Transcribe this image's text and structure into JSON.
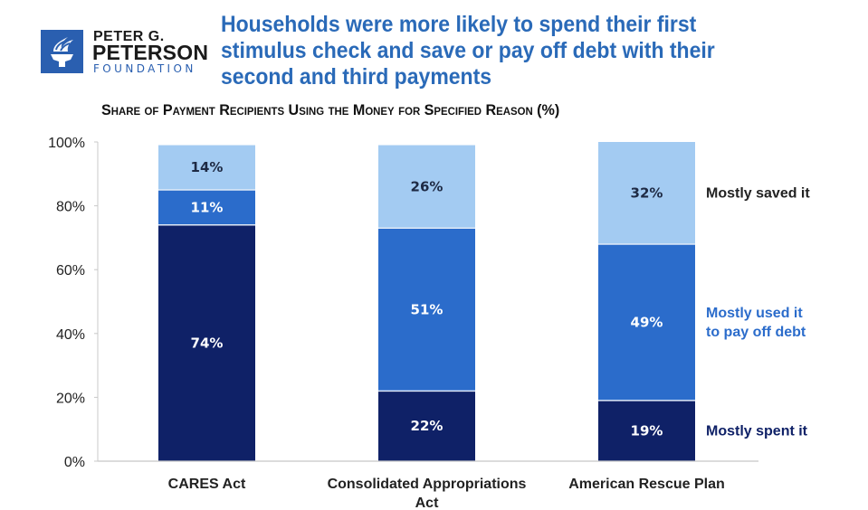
{
  "logo": {
    "line1": "PETER G.",
    "line2": "PETERSON",
    "line3": "FOUNDATION",
    "icon": "torch-icon",
    "brand_color": "#2a5fb0"
  },
  "headline": "Households were more likely to spend their first stimulus check and save or pay off debt with their second and third payments",
  "chart_data": {
    "type": "bar",
    "stacked": true,
    "title": "Share of Payment Recipients Using the Money for Specified Reason (%)",
    "xlabel": "",
    "ylabel": "",
    "ylim": [
      0,
      100
    ],
    "yticks": [
      0,
      20,
      40,
      60,
      80,
      100
    ],
    "ytick_labels": [
      "0%",
      "20%",
      "40%",
      "60%",
      "80%",
      "100%"
    ],
    "grid": false,
    "legend_placement": "right (inline labels)",
    "categories": [
      [
        "CARES Act"
      ],
      [
        "Consolidated Appropriations",
        "Act"
      ],
      [
        "American Rescue Plan"
      ]
    ],
    "series": [
      {
        "name": "Mostly spent it",
        "color": "#0f2167",
        "label_color": "#ffffff",
        "legend_color": "#0f2167",
        "values": [
          74,
          22,
          19
        ],
        "labels": [
          "74%",
          "22%",
          "19%"
        ]
      },
      {
        "name": "Mostly used it to pay off debt",
        "legend_lines": [
          "Mostly used it",
          "to pay off debt"
        ],
        "color": "#2b6ccb",
        "label_color": "#ffffff",
        "legend_color": "#2b6ccb",
        "values": [
          11,
          51,
          49
        ],
        "labels": [
          "11%",
          "51%",
          "49%"
        ]
      },
      {
        "name": "Mostly saved it",
        "color": "#a3cbf2",
        "label_color": "#1e2a44",
        "legend_color": "#222222",
        "values": [
          14,
          26,
          32
        ],
        "labels": [
          "14%",
          "26%",
          "32%"
        ]
      }
    ]
  }
}
